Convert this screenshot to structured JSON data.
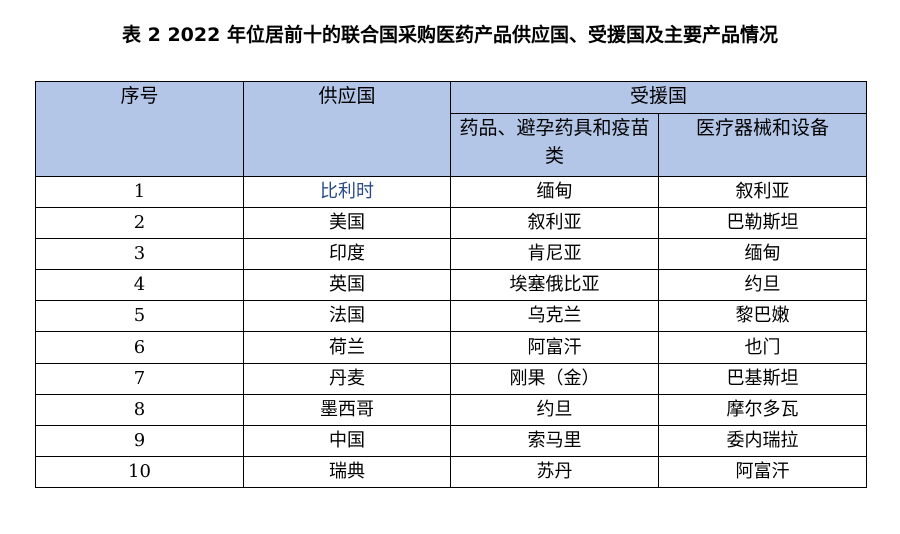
{
  "title": "表 2  2022 年位居前十的联合国采购医药产品供应国、受援国及主要产品情况",
  "headers": {
    "index": "序号",
    "supplier": "供应国",
    "recipient": "受援国",
    "pharma": "药品、避孕药具和疫苗类",
    "devices": "医疗器械和设备"
  },
  "header_bg": "#b4c6e7",
  "rows": [
    {
      "no": "1",
      "supplier": "比利时",
      "pharma": "缅甸",
      "devices": "叙利亚"
    },
    {
      "no": "2",
      "supplier": "美国",
      "pharma": "叙利亚",
      "devices": "巴勒斯坦"
    },
    {
      "no": "3",
      "supplier": "印度",
      "pharma": "肯尼亚",
      "devices": "缅甸"
    },
    {
      "no": "4",
      "supplier": "英国",
      "pharma": "埃塞俄比亚",
      "devices": "约旦"
    },
    {
      "no": "5",
      "supplier": "法国",
      "pharma": "乌克兰",
      "devices": "黎巴嫩"
    },
    {
      "no": "6",
      "supplier": "荷兰",
      "pharma": "阿富汗",
      "devices": "也门"
    },
    {
      "no": "7",
      "supplier": "丹麦",
      "pharma": "刚果（金）",
      "devices": "巴基斯坦"
    },
    {
      "no": "8",
      "supplier": "墨西哥",
      "pharma": "约旦",
      "devices": "摩尔多瓦"
    },
    {
      "no": "9",
      "supplier": "中国",
      "pharma": "索马里",
      "devices": "委内瑞拉"
    },
    {
      "no": "10",
      "supplier": "瑞典",
      "pharma": "苏丹",
      "devices": "阿富汗"
    }
  ]
}
